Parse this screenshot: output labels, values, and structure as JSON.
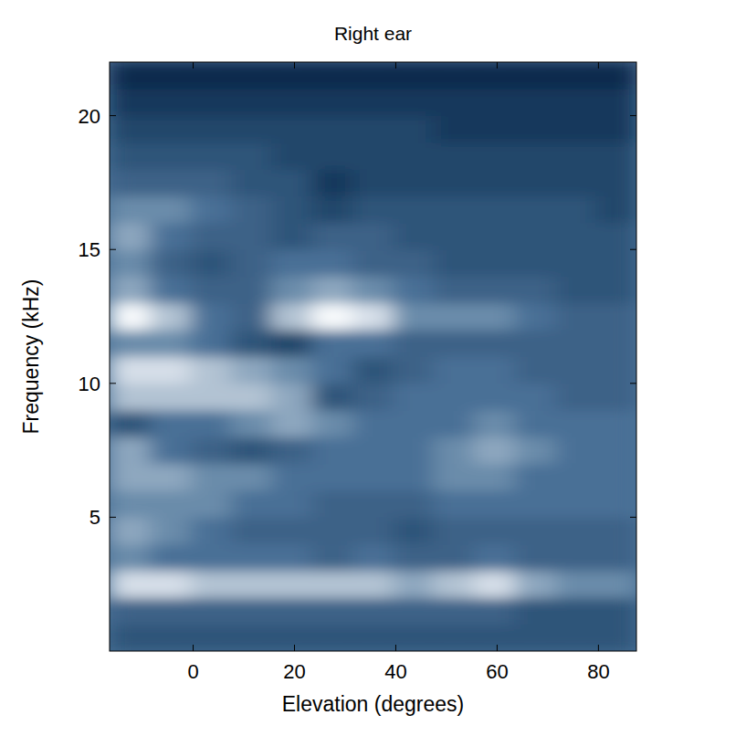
{
  "chart_data": {
    "type": "heatmap",
    "title": "Right ear",
    "x_label": "Elevation (degrees)",
    "y_label": "Frequency (kHz)",
    "xlim": [
      -16.5,
      87.5
    ],
    "ylim": [
      0,
      22
    ],
    "xticks": [
      0,
      20,
      40,
      60,
      80
    ],
    "yticks": [
      5,
      10,
      15,
      20
    ],
    "xbins": [
      -16.5,
      -8.5,
      -0.5,
      7.5,
      15.5,
      23.5,
      31.5,
      39.5,
      47.5,
      55.5,
      63.5,
      71.5,
      79.5,
      87.5
    ],
    "ybins": [
      0,
      1,
      2,
      3,
      4,
      5,
      6,
      7,
      8,
      9,
      10,
      11,
      12,
      13,
      14,
      15,
      16,
      17,
      18,
      19,
      20,
      21,
      22
    ],
    "cells": [
      [
        3,
        3,
        3,
        3,
        3,
        3,
        3,
        3,
        3,
        3,
        3,
        3,
        3
      ],
      [
        4,
        4,
        4,
        4,
        4,
        4,
        4,
        4,
        4,
        4,
        3,
        3,
        3
      ],
      [
        9,
        9,
        8,
        8,
        8,
        8,
        8,
        7,
        8,
        9,
        7,
        6,
        6
      ],
      [
        6,
        5,
        5,
        5,
        5,
        4,
        5,
        4,
        4,
        5,
        4,
        4,
        4
      ],
      [
        7,
        6,
        5,
        4,
        4,
        4,
        4,
        3,
        4,
        4,
        4,
        4,
        4
      ],
      [
        6,
        6,
        6,
        5,
        5,
        4,
        4,
        4,
        5,
        5,
        5,
        5,
        5
      ],
      [
        7,
        7,
        6,
        6,
        5,
        5,
        5,
        5,
        6,
        6,
        5,
        5,
        5
      ],
      [
        7,
        5,
        4,
        3,
        4,
        5,
        5,
        5,
        6,
        7,
        6,
        5,
        5
      ],
      [
        3,
        5,
        5,
        6,
        7,
        6,
        5,
        5,
        5,
        6,
        5,
        5,
        5
      ],
      [
        8,
        8,
        8,
        8,
        7,
        3,
        4,
        5,
        5,
        5,
        5,
        4,
        4
      ],
      [
        9,
        9,
        8,
        7,
        6,
        5,
        3,
        4,
        5,
        5,
        4,
        4,
        4
      ],
      [
        6,
        6,
        5,
        3,
        2,
        5,
        5,
        4,
        4,
        4,
        4,
        4,
        4
      ],
      [
        10,
        8,
        5,
        4,
        8,
        10,
        9,
        6,
        6,
        6,
        5,
        4,
        4
      ],
      [
        7,
        5,
        4,
        4,
        6,
        7,
        6,
        5,
        4,
        4,
        4,
        3,
        3
      ],
      [
        6,
        4,
        3,
        4,
        5,
        5,
        4,
        4,
        3,
        3,
        3,
        3,
        3
      ],
      [
        7,
        5,
        4,
        4,
        3,
        4,
        4,
        3,
        3,
        3,
        3,
        3,
        3
      ],
      [
        6,
        6,
        5,
        4,
        3,
        2,
        3,
        3,
        3,
        3,
        3,
        3,
        2
      ],
      [
        4,
        4,
        4,
        3,
        3,
        1,
        2,
        2,
        2,
        2,
        2,
        2,
        2
      ],
      [
        3,
        3,
        3,
        3,
        2,
        2,
        2,
        2,
        2,
        2,
        2,
        2,
        2
      ],
      [
        2,
        2,
        2,
        2,
        2,
        2,
        2,
        2,
        1,
        1,
        1,
        1,
        1
      ],
      [
        1,
        1,
        1,
        1,
        1,
        1,
        1,
        1,
        1,
        1,
        1,
        1,
        1
      ],
      [
        0,
        0,
        0,
        0,
        0,
        0,
        0,
        0,
        0,
        0,
        0,
        0,
        0
      ]
    ]
  }
}
